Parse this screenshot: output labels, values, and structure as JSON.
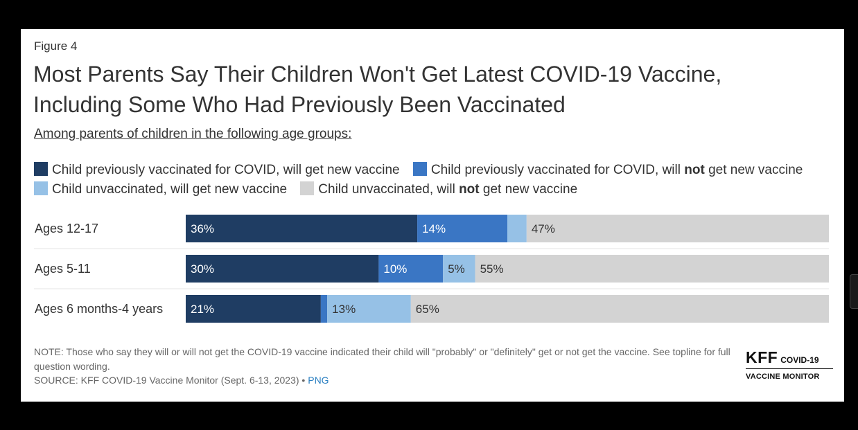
{
  "figure_label": "Figure 4",
  "title_line1": "Most Parents Say Their Children Won't Get Latest COVID-19 Vaccine,",
  "title_line2": "Including Some Who Had Previously Been Vaccinated",
  "subtitle": "Among parents of children in the following age groups:",
  "legend": [
    {
      "pre": "Child previously vaccinated for COVID, will get new vaccine",
      "bold": "",
      "post": "",
      "color": "#1f3d63"
    },
    {
      "pre": "Child previously vaccinated for COVID, will ",
      "bold": "not",
      "post": " get new vaccine",
      "color": "#3a76c4"
    },
    {
      "pre": "Child unvaccinated, will get new vaccine",
      "bold": "",
      "post": "",
      "color": "#96c1e6"
    },
    {
      "pre": "Child unvaccinated, will ",
      "bold": "not",
      "post": " get new vaccine",
      "color": "#d3d3d3"
    }
  ],
  "chart_data": {
    "type": "bar",
    "orientation": "horizontal",
    "stacked": true,
    "categories": [
      "Ages 12-17",
      "Ages 5-11",
      "Ages 6 months-4 years"
    ],
    "series": [
      {
        "name": "Child previously vaccinated for COVID, will get new vaccine",
        "values": [
          36,
          30,
          21
        ],
        "labels": [
          "36%",
          "30%",
          "21%"
        ],
        "color": "#1f3d63"
      },
      {
        "name": "Child previously vaccinated for COVID, will not get new vaccine",
        "values": [
          14,
          10,
          1
        ],
        "labels": [
          "14%",
          "10%",
          ""
        ],
        "color": "#3a76c4"
      },
      {
        "name": "Child unvaccinated, will get new vaccine",
        "values": [
          3,
          5,
          13
        ],
        "labels": [
          "",
          "5%",
          "13%"
        ],
        "color": "#96c1e6"
      },
      {
        "name": "Child unvaccinated, will not get new vaccine",
        "values": [
          47,
          55,
          65
        ],
        "labels": [
          "47%",
          "55%",
          "65%"
        ],
        "color": "#d3d3d3"
      }
    ],
    "xlim": [
      0,
      100
    ],
    "grid": false
  },
  "note": "NOTE: Those who say they will or will not get the COVID-19 vaccine indicated their child will \"probably\" or \"definitely\" get or not get the vaccine. See topline for full question wording.",
  "source_text": "SOURCE: KFF COVID-19 Vaccine Monitor (Sept. 6-13, 2023) • ",
  "source_link": "PNG",
  "logo": {
    "kff": "KFF",
    "covid": "COVID-19",
    "monitor": "VACCINE MONITOR"
  }
}
